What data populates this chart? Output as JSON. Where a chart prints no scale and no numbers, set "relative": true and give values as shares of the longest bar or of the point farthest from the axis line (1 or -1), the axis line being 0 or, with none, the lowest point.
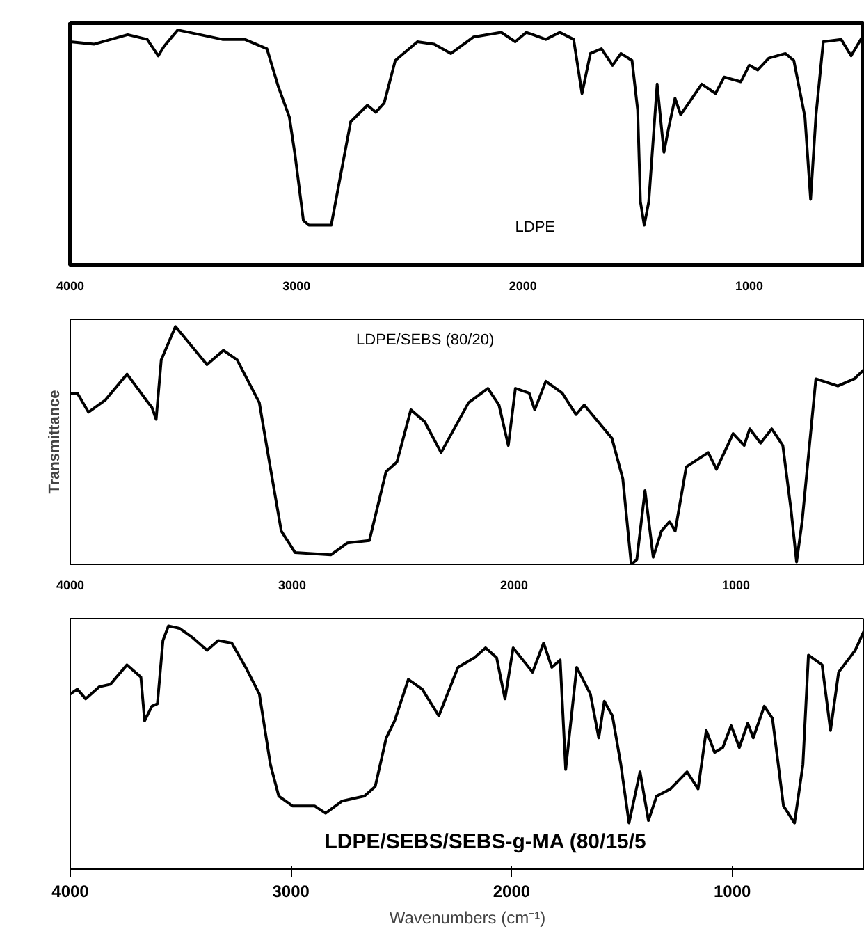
{
  "chart_data": [
    {
      "type": "line",
      "relative": true,
      "grid": false,
      "tick_labels": "x",
      "marker": "none",
      "line_style": "solid",
      "xlim": [
        4000,
        490
      ],
      "xticks": [
        4000,
        3000,
        2000,
        1000
      ],
      "annotations": [
        "LDPE"
      ],
      "x": [
        4000,
        3894,
        3746,
        3660,
        3611,
        3586,
        3525,
        3328,
        3229,
        3131,
        3081,
        3032,
        3007,
        2970,
        2946,
        2847,
        2810,
        2761,
        2687,
        2650,
        2613,
        2564,
        2466,
        2392,
        2318,
        2219,
        2096,
        2034,
        1985,
        1899,
        1837,
        1776,
        1739,
        1702,
        1653,
        1604,
        1567,
        1518,
        1493,
        1481,
        1464,
        1444,
        1407,
        1377,
        1357,
        1328,
        1303,
        1210,
        1149,
        1111,
        1037,
        1000,
        963,
        914,
        840,
        803,
        754,
        729,
        705,
        673,
        594,
        550,
        495
      ],
      "series": [
        {
          "color": "#000000",
          "values": [
            0.95,
            0.94,
            0.98,
            0.96,
            0.89,
            0.93,
            1.0,
            0.96,
            0.96,
            0.92,
            0.76,
            0.63,
            0.47,
            0.19,
            0.17,
            0.17,
            0.36,
            0.61,
            0.68,
            0.65,
            0.69,
            0.87,
            0.95,
            0.94,
            0.9,
            0.97,
            0.99,
            0.95,
            0.99,
            0.96,
            0.99,
            0.96,
            0.73,
            0.9,
            0.92,
            0.85,
            0.9,
            0.87,
            0.66,
            0.27,
            0.17,
            0.27,
            0.77,
            0.48,
            0.58,
            0.71,
            0.64,
            0.77,
            0.73,
            0.8,
            0.78,
            0.85,
            0.83,
            0.88,
            0.9,
            0.87,
            0.63,
            0.28,
            0.64,
            0.95,
            0.96,
            0.89,
            0.98
          ]
        }
      ]
    },
    {
      "type": "line",
      "relative": true,
      "grid": false,
      "tick_labels": "x",
      "marker": "none",
      "line_style": "solid",
      "xlim": [
        4000,
        420
      ],
      "xticks": [
        4000,
        3000,
        2000,
        1000
      ],
      "ylabel": "Transmittance",
      "annotations": [
        "LDPE/SEBS (80/20)"
      ],
      "x": [
        4000,
        3968,
        3918,
        3843,
        3744,
        3657,
        3632,
        3613,
        3590,
        3526,
        3446,
        3384,
        3310,
        3248,
        3148,
        3099,
        3049,
        2987,
        2826,
        2751,
        2652,
        2577,
        2528,
        2465,
        2403,
        2329,
        2205,
        2118,
        2068,
        2026,
        1994,
        1932,
        1907,
        1857,
        1783,
        1721,
        1684,
        1559,
        1510,
        1472,
        1447,
        1410,
        1373,
        1336,
        1299,
        1274,
        1224,
        1125,
        1088,
        1013,
        963,
        938,
        889,
        839,
        789,
        752,
        727,
        702,
        640,
        541,
        467,
        422
      ],
      "series": [
        {
          "color": "#000000",
          "values": [
            0.72,
            0.72,
            0.64,
            0.69,
            0.8,
            0.69,
            0.66,
            0.61,
            0.86,
            1.0,
            0.91,
            0.84,
            0.9,
            0.86,
            0.68,
            0.41,
            0.14,
            0.05,
            0.04,
            0.09,
            0.1,
            0.39,
            0.43,
            0.65,
            0.6,
            0.47,
            0.68,
            0.74,
            0.67,
            0.5,
            0.74,
            0.72,
            0.65,
            0.77,
            0.72,
            0.63,
            0.67,
            0.53,
            0.36,
            0.0,
            0.02,
            0.31,
            0.03,
            0.14,
            0.18,
            0.14,
            0.41,
            0.47,
            0.4,
            0.55,
            0.5,
            0.57,
            0.51,
            0.57,
            0.5,
            0.23,
            0.01,
            0.18,
            0.78,
            0.75,
            0.78,
            0.82
          ]
        }
      ]
    },
    {
      "type": "line",
      "relative": true,
      "grid": false,
      "tick_labels": "x",
      "marker": "none",
      "line_style": "solid",
      "xlim": [
        4000,
        400
      ],
      "xticks": [
        4000,
        3000,
        2000,
        1000
      ],
      "xlabel": "Wavenumbers (cm⁻¹)",
      "annotations": [
        "LDPE/SEBS/SEBS-g-MA (80/15/5"
      ],
      "x": [
        4000,
        3968,
        3930,
        3868,
        3818,
        3743,
        3680,
        3663,
        3630,
        3605,
        3580,
        3555,
        3505,
        3443,
        3380,
        3330,
        3268,
        3205,
        3143,
        3093,
        3055,
        2993,
        2893,
        2843,
        2768,
        2668,
        2618,
        2568,
        2530,
        2468,
        2405,
        2330,
        2243,
        2168,
        2118,
        2068,
        2030,
        1993,
        1905,
        1855,
        1818,
        1780,
        1755,
        1705,
        1643,
        1605,
        1580,
        1543,
        1505,
        1468,
        1418,
        1380,
        1343,
        1280,
        1205,
        1155,
        1118,
        1080,
        1043,
        1005,
        968,
        930,
        905,
        855,
        818,
        768,
        718,
        680,
        655,
        593,
        555,
        518,
        443,
        403
      ],
      "series": [
        {
          "color": "#000000",
          "values": [
            0.72,
            0.74,
            0.7,
            0.75,
            0.76,
            0.84,
            0.79,
            0.61,
            0.67,
            0.68,
            0.94,
            1.0,
            0.99,
            0.95,
            0.9,
            0.94,
            0.93,
            0.83,
            0.72,
            0.43,
            0.3,
            0.26,
            0.26,
            0.23,
            0.28,
            0.3,
            0.34,
            0.54,
            0.61,
            0.78,
            0.74,
            0.63,
            0.83,
            0.87,
            0.91,
            0.87,
            0.7,
            0.91,
            0.81,
            0.93,
            0.83,
            0.86,
            0.41,
            0.83,
            0.72,
            0.54,
            0.69,
            0.63,
            0.43,
            0.19,
            0.4,
            0.2,
            0.3,
            0.33,
            0.4,
            0.33,
            0.57,
            0.48,
            0.5,
            0.59,
            0.5,
            0.6,
            0.54,
            0.67,
            0.62,
            0.26,
            0.19,
            0.43,
            0.88,
            0.84,
            0.57,
            0.81,
            0.9,
            0.98
          ]
        }
      ]
    }
  ]
}
